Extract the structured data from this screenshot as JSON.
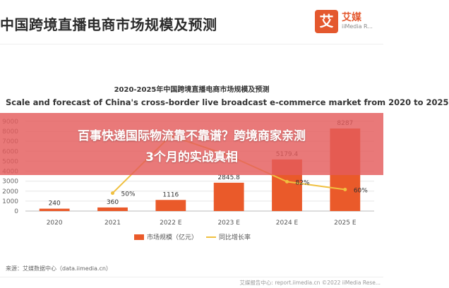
{
  "header": {
    "title": "中国跨境直播电商市场规模及预测",
    "logo_char": "艾",
    "logo_name": "艾媒",
    "logo_sub": "iiMedia R..."
  },
  "overlay": {
    "line1": "百事快递国际物流靠不靠谱？跨境商家亲测",
    "line2": "3个月的实战真相"
  },
  "chart_data": {
    "type": "bar",
    "title": "2020-2025年中国跨境直播电商市场规模及预测",
    "subtitle": "Scale and forecast of China's cross-border live broadcast e-commerce market from 2020 to 2025",
    "categories": [
      "2020",
      "2021",
      "2022 E",
      "2023 E",
      "2024 E",
      "2025 E"
    ],
    "ylim": [
      0,
      9000
    ],
    "yticks": [
      0,
      1000,
      2000,
      3000,
      4000,
      5000,
      6000,
      7000,
      8000,
      9000
    ],
    "series": [
      {
        "name": "市场规模（亿元）",
        "type": "bar",
        "color": "#ea5a2a",
        "values": [
          240,
          360,
          1116,
          2845.8,
          5179.4,
          8287
        ],
        "labels": [
          "240",
          "360",
          "1116",
          "2845.8",
          "5179.4",
          "8287"
        ]
      },
      {
        "name": "同比增长率",
        "type": "line",
        "color": "#f0c040",
        "values": [
          null,
          50,
          210,
          155,
          82,
          60
        ],
        "labels": [
          "",
          "50%",
          "",
          "",
          "82%",
          "60%"
        ]
      }
    ],
    "legend_position": "bottom"
  },
  "footer": {
    "source": "来源：艾媒数据中心（data.iimedia.cn）",
    "copyright": "艾媒报告中心: report.iimedia.cn ©2022 iiMedia Rese..."
  }
}
